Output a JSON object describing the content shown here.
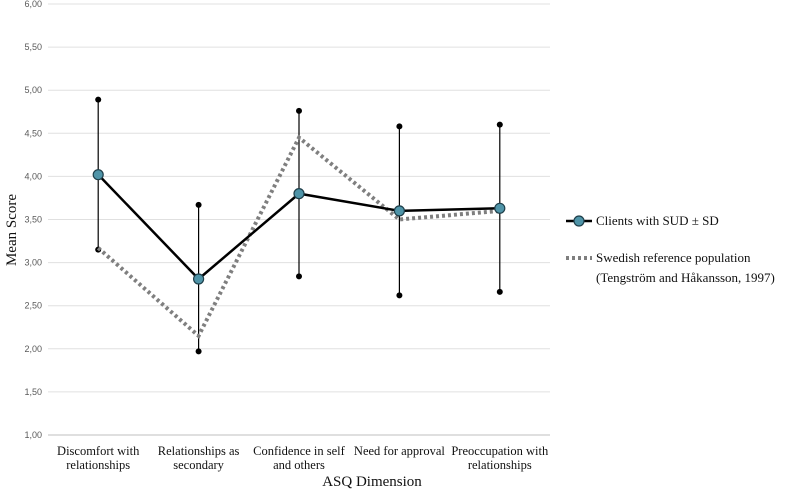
{
  "chart_data": {
    "type": "line",
    "title": "",
    "xlabel": "ASQ Dimension",
    "ylabel": "Mean Score",
    "ylim": [
      1.0,
      6.0
    ],
    "ytick_step": 0.5,
    "ytick_labels": [
      "1,00",
      "1,50",
      "2,00",
      "2,50",
      "3,00",
      "3,50",
      "4,00",
      "4,50",
      "5,00",
      "5,50",
      "6,00"
    ],
    "grid": true,
    "legend_position": "right",
    "categories": [
      [
        "Discomfort with",
        "relationships"
      ],
      [
        "Relationships as",
        "secondary"
      ],
      [
        "Confidence in self",
        "and others"
      ],
      [
        "Need for approval"
      ],
      [
        "Preoccupation with",
        "relationships"
      ]
    ],
    "series": [
      {
        "name": "Clients with SUD ± SD",
        "style": "solid",
        "color": "#000000",
        "marker_color": "#4f94a8",
        "values": [
          4.02,
          2.81,
          3.8,
          3.6,
          3.63
        ],
        "error_low": [
          3.15,
          1.97,
          2.84,
          2.62,
          2.66
        ],
        "error_high": [
          4.89,
          3.67,
          4.76,
          4.58,
          4.6
        ]
      },
      {
        "name": [
          "Swedish reference population",
          "(Tengström and Håkansson, 1997)"
        ],
        "style": "dotted",
        "color": "#7f7f7f",
        "values": [
          3.17,
          2.15,
          4.45,
          3.5,
          3.6
        ]
      }
    ]
  }
}
